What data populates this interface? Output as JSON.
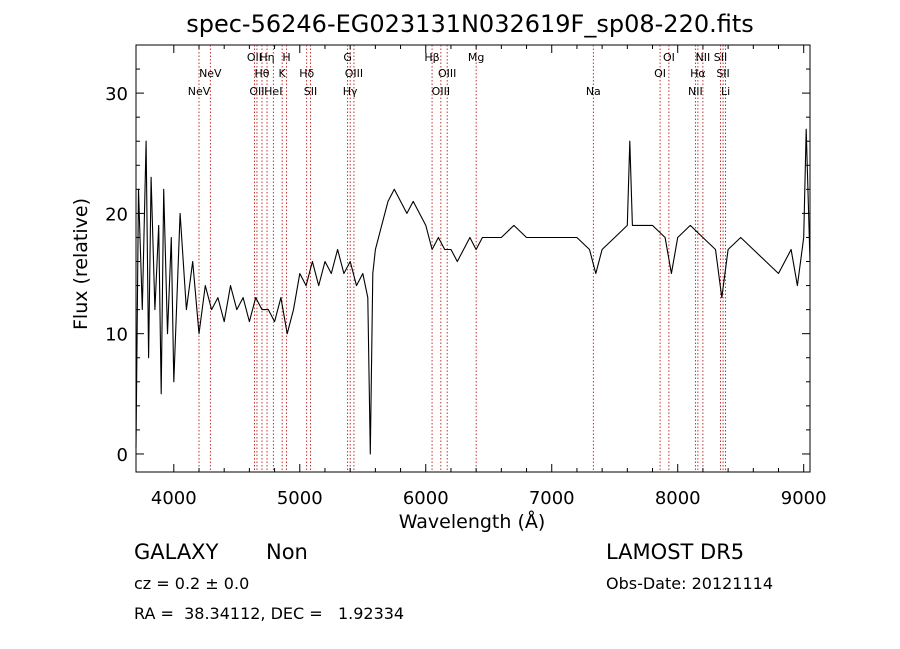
{
  "chart_data": {
    "type": "line",
    "title": "spec-56246-EG023131N032619F_sp08-220.fits",
    "xlabel": "Wavelength (Å)",
    "ylabel": "Flux (relative)",
    "xlim": [
      3700,
      9050
    ],
    "ylim": [
      -1.5,
      34
    ],
    "xticks": [
      4000,
      5000,
      6000,
      7000,
      8000,
      9000
    ],
    "yticks": [
      0,
      10,
      20,
      30
    ],
    "grid": false,
    "series": [
      {
        "color": "#000000",
        "x": [
          3700,
          3720,
          3750,
          3780,
          3800,
          3820,
          3850,
          3880,
          3900,
          3920,
          3950,
          3980,
          4000,
          4050,
          4100,
          4150,
          4200,
          4250,
          4300,
          4350,
          4400,
          4450,
          4500,
          4550,
          4600,
          4650,
          4700,
          4750,
          4800,
          4850,
          4900,
          4950,
          5000,
          5050,
          5100,
          5150,
          5200,
          5250,
          5300,
          5350,
          5400,
          5450,
          5500,
          5540,
          5560,
          5580,
          5600,
          5650,
          5700,
          5750,
          5800,
          5850,
          5900,
          5950,
          6000,
          6050,
          6100,
          6150,
          6200,
          6250,
          6300,
          6350,
          6400,
          6450,
          6500,
          6600,
          6700,
          6800,
          6900,
          7000,
          7100,
          7200,
          7300,
          7350,
          7400,
          7500,
          7600,
          7620,
          7640,
          7700,
          7800,
          7900,
          7950,
          8000,
          8100,
          8200,
          8300,
          8350,
          8400,
          8500,
          8600,
          8700,
          8800,
          8900,
          8950,
          9000,
          9020,
          9050
        ],
        "y": [
          0.5,
          22,
          12,
          26,
          8,
          23,
          12,
          19,
          5,
          22,
          10,
          18,
          6,
          20,
          12,
          16,
          10,
          14,
          12,
          13,
          11,
          14,
          12,
          13,
          11,
          13,
          12,
          12,
          11,
          13,
          10,
          12,
          15,
          14,
          16,
          14,
          16,
          15,
          17,
          15,
          16,
          14,
          15,
          13,
          0,
          15,
          17,
          19,
          21,
          22,
          21,
          20,
          21,
          20,
          19,
          17,
          18,
          17,
          17,
          16,
          17,
          18,
          17,
          18,
          18,
          18,
          19,
          18,
          18,
          18,
          18,
          18,
          17,
          15,
          17,
          18,
          19,
          26,
          19,
          19,
          19,
          18,
          15,
          18,
          19,
          18,
          17,
          13,
          17,
          18,
          17,
          16,
          15,
          17,
          14,
          18,
          27,
          16
        ]
      }
    ],
    "lines": [
      {
        "x": 4200,
        "row": 2,
        "label": "NeV"
      },
      {
        "x": 4290,
        "row": 1,
        "label": "NeV"
      },
      {
        "x": 4640,
        "row": 0,
        "label": "OII"
      },
      {
        "x": 4660,
        "row": 2,
        "label": "OII"
      },
      {
        "x": 4700,
        "row": 1,
        "label": "Hθ"
      },
      {
        "x": 4740,
        "row": 0,
        "label": "Hη"
      },
      {
        "x": 4790,
        "row": 2,
        "label": "HeI"
      },
      {
        "x": 4860,
        "row": 1,
        "label": "K"
      },
      {
        "x": 4895,
        "row": 0,
        "label": "H"
      },
      {
        "x": 5055,
        "row": 1,
        "label": "Hδ"
      },
      {
        "x": 5085,
        "row": 2,
        "label": "SII"
      },
      {
        "x": 5380,
        "row": 0,
        "label": "G"
      },
      {
        "x": 5400,
        "row": 2,
        "label": "Hγ"
      },
      {
        "x": 5430,
        "row": 1,
        "label": "OIII"
      },
      {
        "x": 6050,
        "row": 0,
        "label": "Hβ"
      },
      {
        "x": 6120,
        "row": 2,
        "label": "OIII"
      },
      {
        "x": 6170,
        "row": 1,
        "label": "OIII"
      },
      {
        "x": 6400,
        "row": 0,
        "label": "Mg"
      },
      {
        "x": 7330,
        "row": 2,
        "label": "Na"
      },
      {
        "x": 7860,
        "row": 1,
        "label": "OI"
      },
      {
        "x": 7930,
        "row": 0,
        "label": "OI"
      },
      {
        "x": 8140,
        "row": 2,
        "label": "NII"
      },
      {
        "x": 8160,
        "row": 1,
        "label": "Hα"
      },
      {
        "x": 8200,
        "row": 0,
        "label": "NII"
      },
      {
        "x": 8340,
        "row": 0,
        "label": "SII"
      },
      {
        "x": 8360,
        "row": 1,
        "label": "SII"
      },
      {
        "x": 8380,
        "row": 2,
        "label": "Li"
      }
    ]
  },
  "info": {
    "object_type": "GALAXY",
    "subclass": "Non",
    "cz": "cz = 0.2 ± 0.0",
    "survey": "LAMOST DR5",
    "obs_date": "Obs-Date: 20121114",
    "coords": "RA =  38.34112, DEC =   1.92334"
  }
}
